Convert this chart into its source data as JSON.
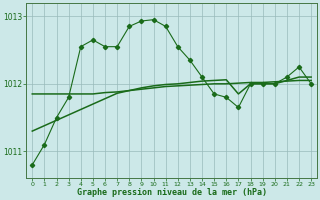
{
  "hours": [
    0,
    1,
    2,
    3,
    4,
    5,
    6,
    7,
    8,
    9,
    10,
    11,
    12,
    13,
    14,
    15,
    16,
    17,
    18,
    19,
    20,
    21,
    22,
    23
  ],
  "pressure_main": [
    1010.8,
    1011.1,
    1011.5,
    1011.8,
    1012.55,
    1012.65,
    1012.55,
    1012.55,
    1012.85,
    1012.93,
    1012.95,
    1012.85,
    1012.55,
    1012.35,
    1012.1,
    1011.85,
    1011.8,
    1011.65,
    1012.0,
    1012.0,
    1012.0,
    1012.1,
    1012.25,
    1012.0
  ],
  "pressure_smooth": [
    1011.85,
    1011.85,
    1011.85,
    1011.85,
    1011.85,
    1011.85,
    1011.87,
    1011.88,
    1011.9,
    1011.92,
    1011.94,
    1011.96,
    1011.97,
    1011.98,
    1011.99,
    1012.0,
    1012.0,
    1012.01,
    1012.02,
    1012.02,
    1012.03,
    1012.04,
    1012.05,
    1012.05
  ],
  "pressure_trend": [
    1011.3,
    1011.38,
    1011.46,
    1011.54,
    1011.62,
    1011.7,
    1011.78,
    1011.86,
    1011.9,
    1011.94,
    1011.97,
    1011.99,
    1012.0,
    1012.02,
    1012.04,
    1012.05,
    1012.06,
    1011.85,
    1012.0,
    1012.0,
    1012.0,
    1012.05,
    1012.1,
    1012.1
  ],
  "ylim": [
    1010.6,
    1013.2
  ],
  "yticks": [
    1011,
    1012,
    1013
  ],
  "xticks": [
    0,
    1,
    2,
    3,
    4,
    5,
    6,
    7,
    8,
    9,
    10,
    11,
    12,
    13,
    14,
    15,
    16,
    17,
    18,
    19,
    20,
    21,
    22,
    23
  ],
  "xlabel": "Graphe pression niveau de la mer (hPa)",
  "bg_color": "#cce8e8",
  "line_color": "#1a6b1a",
  "grid_color": "#99bbbb",
  "marker": "D",
  "marker_size": 2.2,
  "line_width": 0.8
}
